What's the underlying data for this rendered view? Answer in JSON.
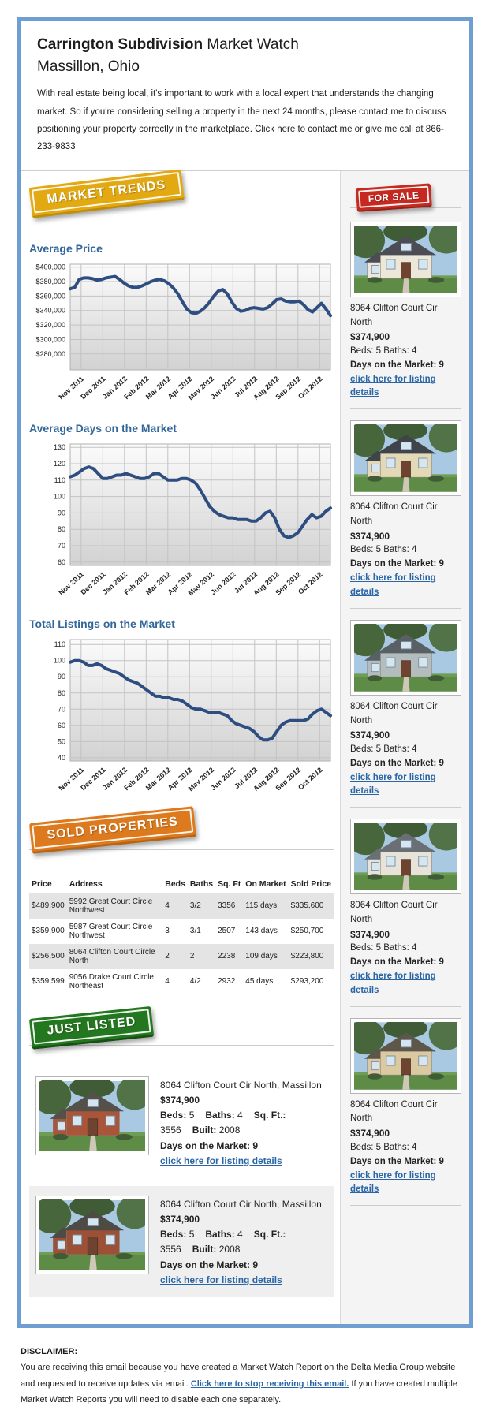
{
  "header": {
    "title_bold": "Carrington Subdivision",
    "title_rest": " Market Watch",
    "subtitle": "Massillon, Ohio",
    "intro": "With real estate being local, it's important to work with a local expert that understands the changing market. So if you're considering selling a property in the next 24 months, please contact me to discuss positioning your property correctly in the marketplace. Click here to contact me or give me call at 866-233-9833"
  },
  "badges": {
    "market_trends": "MARKET TRENDS",
    "for_sale": "FOR SALE",
    "sold_properties": "SOLD PROPERTIES",
    "just_listed": "JUST LISTED"
  },
  "colors": {
    "border_blue": "#6f9ed2",
    "heading_blue": "#336699",
    "chart_line": "#2e4d80",
    "badge_gold": "#e2a912",
    "badge_red": "#c5291f",
    "badge_orange": "#dd7a1e",
    "badge_green": "#23771f",
    "link_blue": "#2a66a5"
  },
  "chart_data": [
    {
      "type": "line",
      "title": "Average Price",
      "legend_position": "none",
      "grid": true,
      "line_color": "#2e4d80",
      "ylim": [
        258000,
        404000
      ],
      "y_ticks": [
        400000,
        380000,
        360000,
        340000,
        320000,
        300000,
        280000
      ],
      "y_tick_labels": [
        "$400,000",
        "$380,000",
        "$360,000",
        "$340,000",
        "$320,000",
        "$300,000",
        "$280,000"
      ],
      "x_labels": [
        "Nov 2011",
        "Dec 2011",
        "Jan 2012",
        "Feb 2012",
        "Mar 2012",
        "Apr 2012",
        "May 2012",
        "Jun 2012",
        "Jul 2012",
        "Aug 2012",
        "Sep 2012",
        "Oct 2012"
      ],
      "values": [
        370000,
        372000,
        383000,
        385000,
        385000,
        384000,
        382000,
        383000,
        385000,
        386000,
        387000,
        383000,
        378000,
        374000,
        372000,
        372000,
        374000,
        377000,
        380000,
        382000,
        383000,
        381000,
        377000,
        371000,
        363000,
        352000,
        342000,
        337000,
        336000,
        339000,
        344000,
        351000,
        360000,
        367000,
        369000,
        363000,
        352000,
        343000,
        339000,
        340000,
        343000,
        344000,
        343000,
        342000,
        344000,
        349000,
        355000,
        356000,
        353000,
        352000,
        352000,
        353000,
        348000,
        341000,
        338000,
        344000,
        350000,
        342000,
        333000
      ]
    },
    {
      "type": "line",
      "title": "Average Days on the Market",
      "legend_position": "none",
      "grid": true,
      "line_color": "#2e4d80",
      "ylim": [
        58,
        132
      ],
      "y_ticks": [
        130,
        120,
        110,
        100,
        90,
        80,
        70,
        60
      ],
      "y_tick_labels": [
        "130",
        "120",
        "110",
        "100",
        "90",
        "80",
        "70",
        "60"
      ],
      "x_labels": [
        "Nov 2011",
        "Dec 2011",
        "Jan 2012",
        "Feb 2012",
        "Mar 2012",
        "Apr 2012",
        "May 2012",
        "Jun 2012",
        "Jul 2012",
        "Aug 2012",
        "Sep 2012",
        "Oct 2012"
      ],
      "values": [
        112,
        113,
        115,
        117,
        118,
        117,
        114,
        111,
        111,
        112,
        113,
        113,
        114,
        113,
        112,
        111,
        111,
        112,
        114,
        114,
        112,
        110,
        110,
        110,
        111,
        111,
        110,
        108,
        104,
        99,
        94,
        91,
        89,
        88,
        87,
        87,
        86,
        86,
        86,
        85,
        85,
        87,
        90,
        91,
        87,
        80,
        76,
        75,
        76,
        78,
        82,
        86,
        89,
        87,
        88,
        91,
        93
      ]
    },
    {
      "type": "line",
      "title": "Total Listings on the Market",
      "legend_position": "none",
      "grid": true,
      "line_color": "#2e4d80",
      "ylim": [
        38,
        113
      ],
      "y_ticks": [
        110,
        100,
        90,
        80,
        70,
        60,
        50,
        40
      ],
      "y_tick_labels": [
        "110",
        "100",
        "90",
        "80",
        "70",
        "60",
        "50",
        "40"
      ],
      "x_labels": [
        "Nov 2011",
        "Dec 2011",
        "Jan 2012",
        "Feb 2012",
        "Mar 2012",
        "Apr 2012",
        "May 2012",
        "Jun 2012",
        "Jul 2012",
        "Aug 2012",
        "Sep 2012",
        "Oct 2012"
      ],
      "values": [
        99,
        100,
        100,
        99,
        97,
        97,
        98,
        97,
        95,
        94,
        93,
        92,
        90,
        88,
        87,
        86,
        84,
        82,
        80,
        78,
        78,
        77,
        77,
        76,
        76,
        75,
        73,
        71,
        70,
        70,
        69,
        68,
        68,
        68,
        67,
        66,
        63,
        61,
        60,
        59,
        58,
        56,
        53,
        51,
        51,
        52,
        56,
        60,
        62,
        63,
        63,
        63,
        63,
        64,
        67,
        69,
        70,
        68,
        66
      ]
    }
  ],
  "sold_table": {
    "columns": [
      "Price",
      "Address",
      "Beds",
      "Baths",
      "Sq. Ft",
      "On Market",
      "Sold Price"
    ],
    "rows": [
      [
        "$489,900",
        "5992 Great Court Circle Northwest",
        "4",
        "3/2",
        "3356",
        "115 days",
        "$335,600"
      ],
      [
        "$359,900",
        "5987 Great Court Circle Northwest",
        "3",
        "3/1",
        "2507",
        "143 days",
        "$250,700"
      ],
      [
        "$256,500",
        "8064 Clifton Court Circle North",
        "2",
        "2",
        "2238",
        "109 days",
        "$223,800"
      ],
      [
        "$359,599",
        "9056 Drake Court Circle Northeast",
        "4",
        "4/2",
        "2932",
        "45 days",
        "$293,200"
      ]
    ]
  },
  "sidebar": {
    "listings": [
      {
        "address": "8064 Clifton Court Cir North",
        "price": "$374,900",
        "beds_baths": "Beds: 5 Baths: 4",
        "days": "Days on the Market: 9",
        "link": "click here for listing details"
      },
      {
        "address": "8064 Clifton Court Cir North",
        "price": "$374,900",
        "beds_baths": "Beds: 5 Baths: 4",
        "days": "Days on the Market: 9",
        "link": "click here for listing details"
      },
      {
        "address": "8064 Clifton Court Cir North",
        "price": "$374,900",
        "beds_baths": "Beds: 5 Baths: 4",
        "days": "Days on the Market: 9",
        "link": "click here for listing details"
      },
      {
        "address": "8064 Clifton Court Cir North",
        "price": "$374,900",
        "beds_baths": "Beds: 5 Baths: 4",
        "days": "Days on the Market: 9",
        "link": "click here for listing details"
      },
      {
        "address": "8064 Clifton Court Cir North",
        "price": "$374,900",
        "beds_baths": "Beds: 5 Baths: 4",
        "days": "Days on the Market: 9",
        "link": "click here for listing details"
      }
    ]
  },
  "just_listed": {
    "items": [
      {
        "address": "8064 Clifton Court Cir North, Massillon",
        "price": "$374,900",
        "specs": [
          {
            "label": "Beds:",
            "value": "5"
          },
          {
            "label": "Baths:",
            "value": "4"
          },
          {
            "label": "Sq. Ft.:",
            "value": "3556"
          },
          {
            "label": "Built:",
            "value": "2008"
          }
        ],
        "days": "Days on the Market: 9",
        "link": "click here for listing details"
      },
      {
        "address": "8064 Clifton Court Cir North, Massillon",
        "price": "$374,900",
        "specs": [
          {
            "label": "Beds:",
            "value": "5"
          },
          {
            "label": "Baths:",
            "value": "4"
          },
          {
            "label": "Sq. Ft.:",
            "value": "3556"
          },
          {
            "label": "Built:",
            "value": "2008"
          }
        ],
        "days": "Days on the Market: 9",
        "link": "click here for listing details"
      }
    ]
  },
  "disclaimer": {
    "label": "DISCLAIMER:",
    "text_before": "You are receiving this email because you have created a Market Watch Report on the Delta Media Group website and requested to receive updates via email. ",
    "link": "Click here to stop receiving this email.",
    "text_after": " If you have created multiple Market Watch Reports you will need to disable each one separately."
  }
}
